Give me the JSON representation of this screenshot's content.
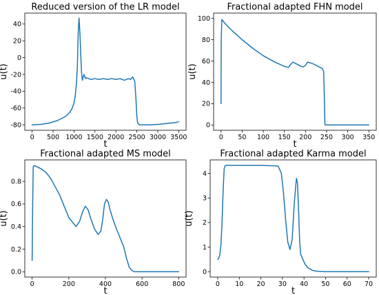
{
  "chart_data": [
    {
      "type": "line",
      "title": "Reduced version of the LR model",
      "xlabel": "t",
      "ylabel": "u(t)",
      "xlim": [
        -175,
        3675
      ],
      "ylim": [
        -86.5,
        53
      ],
      "xticks": [
        0,
        500,
        1000,
        1500,
        2000,
        2500,
        3000,
        3500
      ],
      "yticks": [
        -80,
        -60,
        -40,
        -20,
        0,
        20,
        40
      ],
      "grid": false,
      "color": "#1f77b4",
      "series": [
        {
          "x": [
            0,
            200,
            400,
            600,
            800,
            900,
            950,
            1000,
            1030,
            1060,
            1080,
            1100,
            1120,
            1140,
            1160,
            1180,
            1200,
            1220,
            1240,
            1260,
            1280,
            1300,
            1350,
            1400,
            1500,
            1600,
            1700,
            1800,
            1900,
            2000,
            2100,
            2200,
            2300,
            2350,
            2400,
            2450,
            2480,
            2500,
            2520,
            2560,
            2600,
            2800,
            3000,
            3200,
            3400,
            3500
          ],
          "y": [
            -80,
            -79.5,
            -78,
            -75,
            -70,
            -65,
            -61,
            -54,
            -45,
            -30,
            -10,
            30,
            47,
            30,
            5,
            -18,
            -27,
            -23,
            -20,
            -23,
            -25,
            -24,
            -25,
            -26,
            -25,
            -26,
            -25,
            -26,
            -25,
            -26,
            -25,
            -27,
            -25,
            -26,
            -23,
            -28,
            -50,
            -70,
            -78,
            -80,
            -80,
            -80,
            -79.5,
            -78.5,
            -77.5,
            -76.5
          ]
        }
      ]
    },
    {
      "type": "line",
      "title": "Fractional adapted FHN model",
      "xlabel": "t",
      "ylabel": "u(t)",
      "xlim": [
        -17.5,
        367.5
      ],
      "ylim": [
        -5,
        105
      ],
      "xticks": [
        0,
        50,
        100,
        150,
        200,
        250,
        300,
        350
      ],
      "yticks": [
        0,
        20,
        40,
        60,
        80,
        100
      ],
      "grid": false,
      "color": "#1f77b4",
      "series": [
        {
          "x": [
            0,
            0.5,
            2,
            10,
            25,
            50,
            75,
            100,
            125,
            150,
            160,
            163,
            170,
            180,
            190,
            195,
            200,
            205,
            210,
            220,
            230,
            240,
            243,
            245,
            246,
            250,
            300,
            350
          ],
          "y": [
            20,
            80,
            99,
            95,
            89,
            80,
            72,
            65,
            59.5,
            55,
            54,
            56,
            59,
            57,
            55,
            54.5,
            56,
            59,
            58.5,
            57,
            55,
            53,
            50,
            20,
            0,
            0,
            0,
            0
          ]
        }
      ]
    },
    {
      "type": "line",
      "title": "Fractional adapted MS model",
      "xlabel": "t",
      "ylabel": "u(t)",
      "xlim": [
        -40,
        840
      ],
      "ylim": [
        -0.047,
        0.99
      ],
      "xticks": [
        0,
        200,
        400,
        600,
        800
      ],
      "yticks": [
        0.0,
        0.2,
        0.4,
        0.6,
        0.8
      ],
      "grid": false,
      "color": "#1f77b4",
      "series": [
        {
          "x": [
            0,
            3,
            6,
            10,
            25,
            50,
            75,
            100,
            150,
            200,
            240,
            260,
            275,
            290,
            305,
            320,
            340,
            360,
            375,
            385,
            395,
            405,
            415,
            425,
            440,
            460,
            480,
            500,
            515,
            530,
            545,
            560,
            600,
            700,
            800
          ],
          "y": [
            0.1,
            0.6,
            0.93,
            0.94,
            0.93,
            0.91,
            0.88,
            0.83,
            0.68,
            0.48,
            0.4,
            0.45,
            0.53,
            0.58,
            0.55,
            0.47,
            0.38,
            0.33,
            0.36,
            0.46,
            0.6,
            0.64,
            0.62,
            0.55,
            0.47,
            0.38,
            0.3,
            0.22,
            0.12,
            0.04,
            0.01,
            0.0,
            0.0,
            0.0,
            0.0
          ]
        }
      ]
    },
    {
      "type": "line",
      "title": "Fractional adapted Karma model",
      "xlabel": "t",
      "ylabel": "u(t)",
      "xlim": [
        -3.5,
        73.5
      ],
      "ylim": [
        -0.22,
        4.55
      ],
      "xticks": [
        0,
        10,
        20,
        30,
        40,
        50,
        60,
        70
      ],
      "yticks": [
        0,
        1,
        2,
        3,
        4
      ],
      "grid": false,
      "color": "#1f77b4",
      "series": [
        {
          "x": [
            0,
            0.5,
            1,
            1.5,
            2,
            2.5,
            3,
            3.5,
            4,
            5,
            10,
            20,
            28,
            29.5,
            30.5,
            31.5,
            32.5,
            33.5,
            34.5,
            35.5,
            36.5,
            37,
            37.5,
            38,
            38.5,
            39.5,
            40.5,
            42,
            44,
            46,
            50,
            60,
            70
          ],
          "y": [
            0.5,
            0.55,
            0.7,
            1.1,
            2.0,
            3.3,
            4.2,
            4.32,
            4.33,
            4.33,
            4.33,
            4.33,
            4.3,
            4.0,
            3.2,
            2.1,
            1.2,
            0.9,
            1.3,
            2.8,
            3.8,
            3.6,
            2.5,
            1.2,
            0.7,
            0.5,
            0.3,
            0.15,
            0.05,
            0.02,
            0.0,
            0.0,
            0.0
          ]
        }
      ]
    }
  ]
}
